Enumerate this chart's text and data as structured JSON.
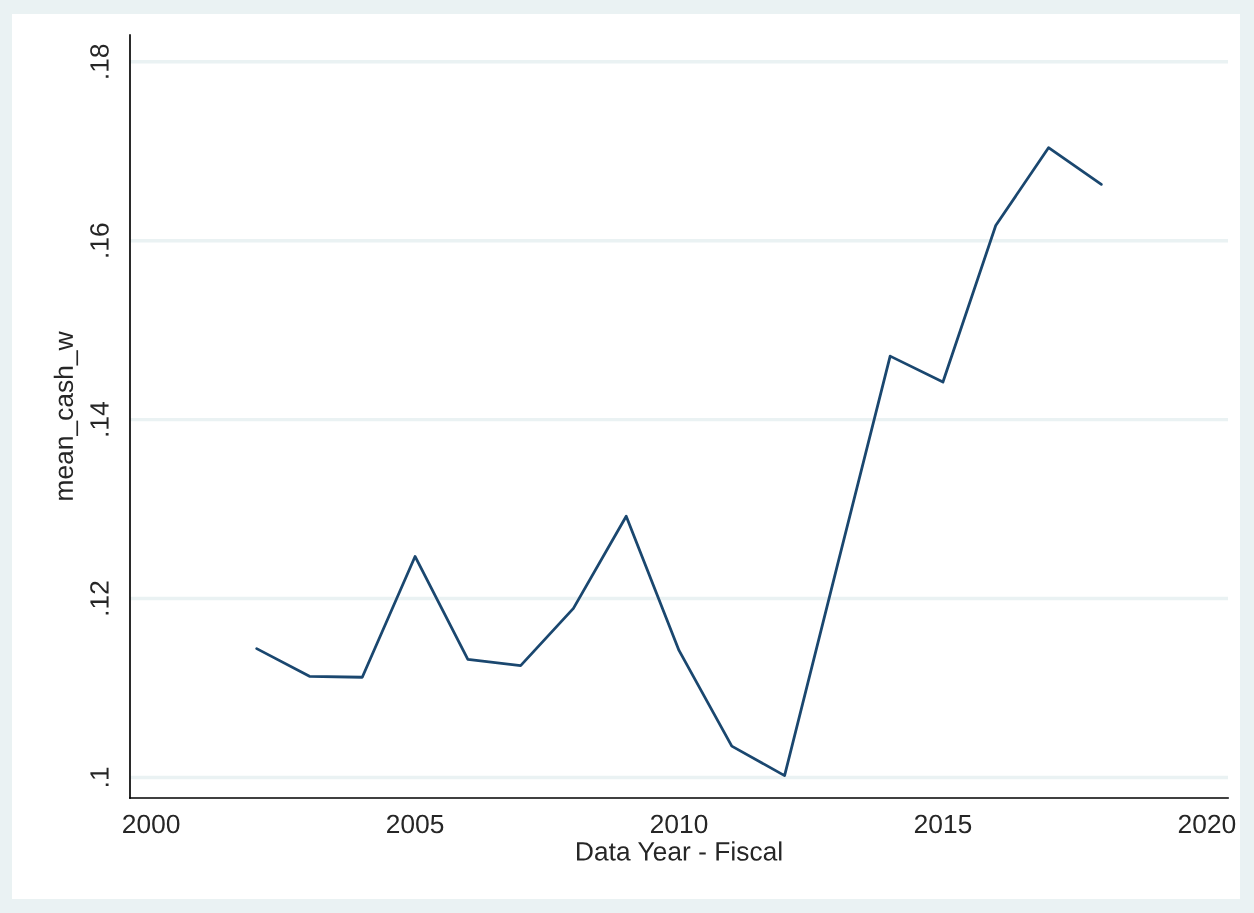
{
  "chart_data": {
    "type": "line",
    "xlabel": "Data Year - Fiscal",
    "ylabel": "mean_cash_w",
    "x": [
      2002,
      2003,
      2004,
      2005,
      2006,
      2007,
      2008,
      2009,
      2010,
      2011,
      2012,
      2013,
      2014,
      2015,
      2016,
      2017,
      2018
    ],
    "series": [
      {
        "color": "#1a476f",
        "values": [
          0.1144,
          0.1113,
          0.1112,
          0.1247,
          0.1132,
          0.1125,
          0.1189,
          0.1292,
          0.1142,
          0.1035,
          0.1002,
          0.1237,
          0.1471,
          0.1442,
          0.1617,
          0.1704,
          0.1663
        ]
      }
    ],
    "xlim": [
      1999.6,
      2020.4
    ],
    "xticks": [
      2000,
      2005,
      2010,
      2015,
      2020
    ],
    "ylim": [
      0.0977,
      0.183
    ],
    "yticks": [
      {
        "value": 0.1,
        "label": ".1"
      },
      {
        "value": 0.12,
        "label": ".12"
      },
      {
        "value": 0.14,
        "label": ".14"
      },
      {
        "value": 0.16,
        "label": ".16"
      },
      {
        "value": 0.18,
        "label": ".18"
      }
    ],
    "grid": "y",
    "marker": "none",
    "line_style": "solid",
    "legend": false
  }
}
